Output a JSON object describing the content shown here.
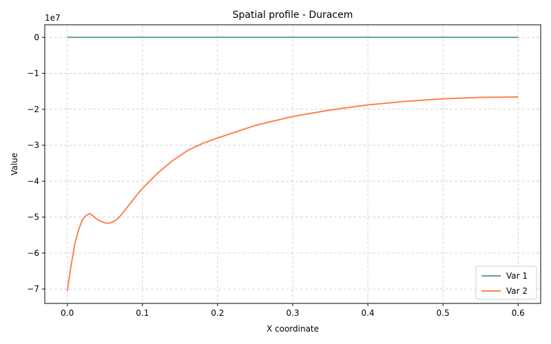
{
  "chart_data": {
    "type": "line",
    "title": "Spatial profile - Duracem",
    "xlabel": "X coordinate",
    "ylabel": "Value",
    "y_scale_label": "1e7",
    "xlim": [
      -0.03,
      0.63
    ],
    "ylim": [
      -7.4,
      0.35
    ],
    "xticks": [
      0.0,
      0.1,
      0.2,
      0.3,
      0.4,
      0.5,
      0.6
    ],
    "xtick_labels": [
      "0.0",
      "0.1",
      "0.2",
      "0.3",
      "0.4",
      "0.5",
      "0.6"
    ],
    "yticks": [
      0,
      -1,
      -2,
      -3,
      -4,
      -5,
      -6,
      -7
    ],
    "ytick_labels": [
      "0",
      "−1",
      "−2",
      "−3",
      "−4",
      "−5",
      "−6",
      "−7"
    ],
    "grid": true,
    "legend_position": "lower-right",
    "series": [
      {
        "name": "Var 1",
        "color": "#5f9ea0",
        "x": [
          0.0,
          0.1,
          0.2,
          0.3,
          0.4,
          0.5,
          0.6
        ],
        "y": [
          0,
          0,
          0,
          0,
          0,
          0,
          0
        ]
      },
      {
        "name": "Var 2",
        "color": "#ff7f50",
        "x": [
          0.0,
          0.005,
          0.01,
          0.015,
          0.02,
          0.025,
          0.03,
          0.035,
          0.04,
          0.045,
          0.05,
          0.055,
          0.06,
          0.065,
          0.07,
          0.08,
          0.09,
          0.1,
          0.12,
          0.14,
          0.16,
          0.18,
          0.2,
          0.25,
          0.3,
          0.35,
          0.4,
          0.45,
          0.5,
          0.55,
          0.6
        ],
        "y": [
          -7.05,
          -6.35,
          -5.75,
          -5.35,
          -5.08,
          -4.95,
          -4.9,
          -4.98,
          -5.07,
          -5.12,
          -5.16,
          -5.17,
          -5.14,
          -5.08,
          -4.98,
          -4.72,
          -4.45,
          -4.2,
          -3.78,
          -3.43,
          -3.15,
          -2.95,
          -2.8,
          -2.45,
          -2.2,
          -2.02,
          -1.88,
          -1.78,
          -1.71,
          -1.67,
          -1.66
        ]
      }
    ]
  }
}
